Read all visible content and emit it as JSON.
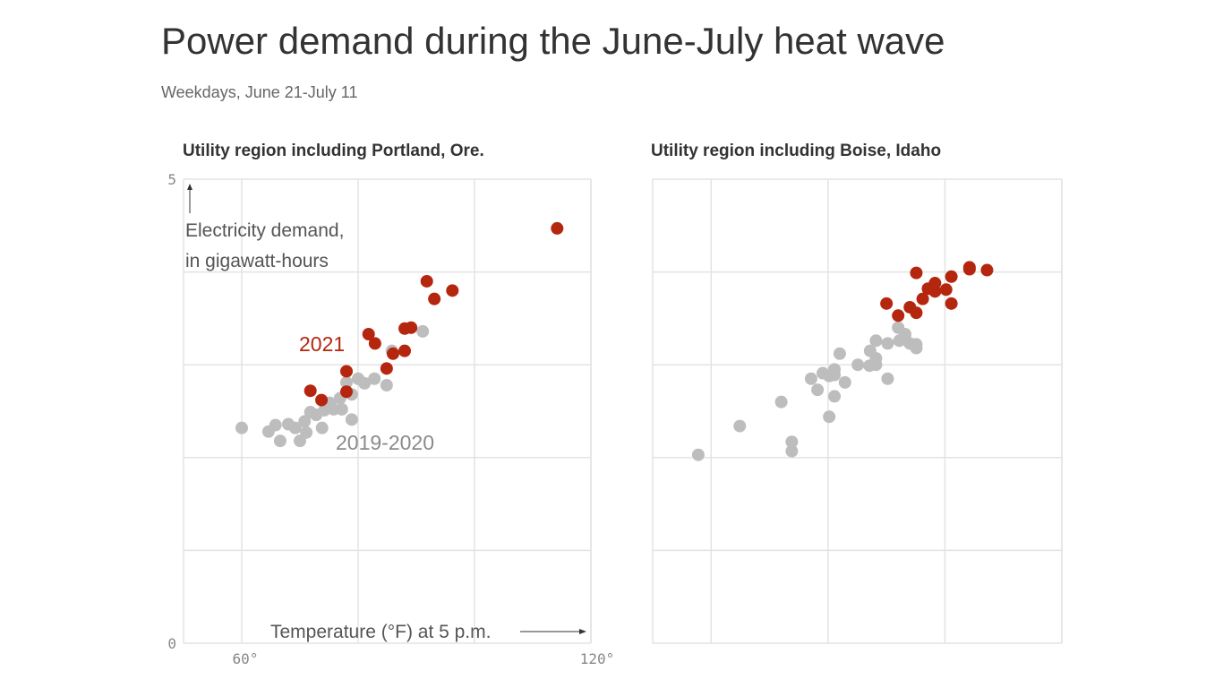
{
  "title": "Power demand during the June-July heat wave",
  "subtitle": "Weekdays, June 21-July 11",
  "colors": {
    "y2021": "#b5260f",
    "y2019_2020": "#bdbdbd",
    "grid": "#e3e3e3"
  },
  "chart_data": [
    {
      "type": "scatter",
      "title": "Utility region including Portland, Ore.",
      "ylabel_lines": [
        "Electricity demand,",
        "in gigawatt-hours"
      ],
      "xlabel": "Temperature (°F) at 5 p.m.",
      "xlim": [
        50,
        120
      ],
      "ylim": [
        0,
        5
      ],
      "x_ticks": [
        {
          "v": 60,
          "label": "60°"
        },
        {
          "v": 120,
          "label": "120°"
        }
      ],
      "y_ticks": [
        {
          "v": 5,
          "label": "5"
        },
        {
          "v": 0,
          "label": "0"
        }
      ],
      "grid": true,
      "series_labels": {
        "y2021": "2021",
        "y2019_2020": "2019-2020"
      },
      "series": [
        {
          "key": "y2019_2020",
          "points": [
            [
              60.0,
              2.32
            ],
            [
              64.6,
              2.28
            ],
            [
              65.8,
              2.35
            ],
            [
              66.6,
              2.18
            ],
            [
              68.0,
              2.36
            ],
            [
              69.2,
              2.32
            ],
            [
              70.0,
              2.18
            ],
            [
              71.1,
              2.27
            ],
            [
              70.8,
              2.39
            ],
            [
              71.8,
              2.49
            ],
            [
              72.8,
              2.46
            ],
            [
              73.8,
              2.32
            ],
            [
              74.2,
              2.51
            ],
            [
              75.1,
              2.59
            ],
            [
              75.8,
              2.52
            ],
            [
              77.2,
              2.52
            ],
            [
              76.9,
              2.64
            ],
            [
              78.0,
              2.81
            ],
            [
              78.9,
              2.68
            ],
            [
              78.9,
              2.41
            ],
            [
              80.0,
              2.85
            ],
            [
              81.1,
              2.8
            ],
            [
              82.8,
              2.85
            ],
            [
              84.9,
              2.78
            ],
            [
              85.8,
              3.15
            ],
            [
              91.1,
              3.36
            ]
          ]
        },
        {
          "key": "y2021",
          "points": [
            [
              71.8,
              2.72
            ],
            [
              73.7,
              2.62
            ],
            [
              78.0,
              2.93
            ],
            [
              78.0,
              2.71
            ],
            [
              81.8,
              3.33
            ],
            [
              82.9,
              3.23
            ],
            [
              84.9,
              2.96
            ],
            [
              86.0,
              3.12
            ],
            [
              88.0,
              3.15
            ],
            [
              88.0,
              3.39
            ],
            [
              89.1,
              3.4
            ],
            [
              91.8,
              3.9
            ],
            [
              93.1,
              3.71
            ],
            [
              96.2,
              3.8
            ],
            [
              114.2,
              4.47
            ]
          ]
        }
      ]
    },
    {
      "type": "scatter",
      "title": "Utility region including Boise, Idaho",
      "xlim": [
        50,
        120
      ],
      "ylim": [
        0,
        5
      ],
      "grid": true,
      "series": [
        {
          "key": "y2019_2020",
          "points": [
            [
              57.8,
              2.03
            ],
            [
              64.9,
              2.34
            ],
            [
              72.0,
              2.6
            ],
            [
              73.8,
              2.17
            ],
            [
              73.8,
              2.07
            ],
            [
              77.1,
              2.85
            ],
            [
              78.2,
              2.73
            ],
            [
              79.1,
              2.91
            ],
            [
              80.2,
              2.88
            ],
            [
              81.1,
              2.95
            ],
            [
              81.1,
              2.89
            ],
            [
              81.1,
              2.66
            ],
            [
              80.2,
              2.44
            ],
            [
              82.0,
              3.12
            ],
            [
              82.9,
              2.81
            ],
            [
              85.1,
              3.0
            ],
            [
              87.2,
              3.15
            ],
            [
              88.2,
              3.26
            ],
            [
              87.1,
              2.99
            ],
            [
              88.2,
              3.0
            ],
            [
              88.2,
              3.07
            ],
            [
              90.2,
              2.85
            ],
            [
              90.2,
              3.23
            ],
            [
              92.0,
              3.4
            ],
            [
              93.2,
              3.33
            ],
            [
              92.2,
              3.26
            ],
            [
              94.0,
              3.23
            ],
            [
              95.1,
              3.22
            ],
            [
              95.1,
              3.18
            ]
          ]
        },
        {
          "key": "y2021",
          "points": [
            [
              90.0,
              3.66
            ],
            [
              92.0,
              3.53
            ],
            [
              94.0,
              3.62
            ],
            [
              95.1,
              3.56
            ],
            [
              95.1,
              3.99
            ],
            [
              96.2,
              3.71
            ],
            [
              97.1,
              3.82
            ],
            [
              98.3,
              3.88
            ],
            [
              98.3,
              3.79
            ],
            [
              100.2,
              3.81
            ],
            [
              101.1,
              3.95
            ],
            [
              101.1,
              3.66
            ],
            [
              104.2,
              4.05
            ],
            [
              104.2,
              4.03
            ],
            [
              107.2,
              4.02
            ]
          ]
        }
      ]
    }
  ]
}
